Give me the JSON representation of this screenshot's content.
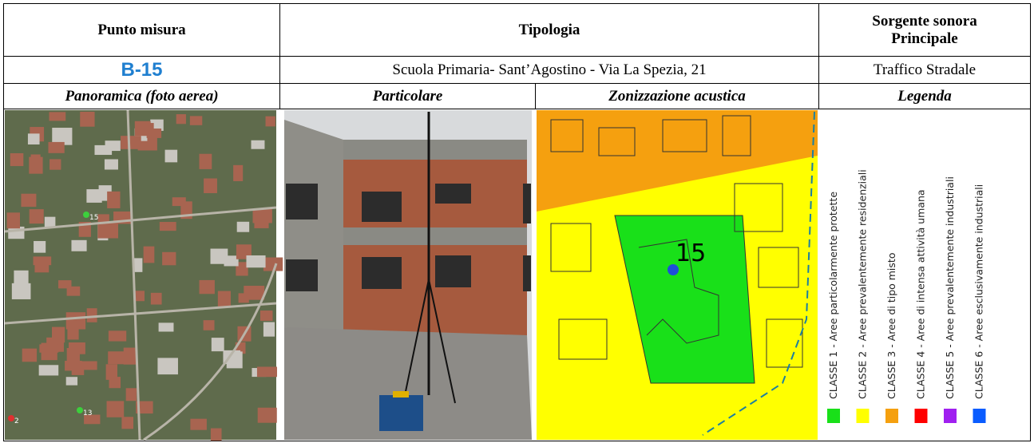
{
  "header": {
    "point": "Punto misura",
    "type": "Tipologia",
    "source": "Sorgente sonora Principale"
  },
  "info": {
    "point": "B-15",
    "type": "Scuola Primaria- Sant’Agostino - Via La Spezia, 21",
    "source": "Traffico Stradale"
  },
  "subheader": {
    "aerial": "Panoramica (foto aerea)",
    "detail": "Particolare",
    "zoning": "Zonizzazione acustica",
    "legend": "Legenda"
  },
  "aerial_markers": [
    "15",
    "13",
    "2"
  ],
  "map_label": "15",
  "legend": [
    {
      "label": "CLASSE 1 - Aree particolarmente protette",
      "color": "#19e019"
    },
    {
      "label": "CLASSE 2 - Aree prevalentemente residenziali",
      "color": "#ffff00"
    },
    {
      "label": "CLASSE 3 - Aree di tipo misto",
      "color": "#f5a00f"
    },
    {
      "label": "CLASSE 4 - Aree  di intensa attività umana",
      "color": "#ff0000"
    },
    {
      "label": "CLASSE 5 - Aree prevalentemente industriali",
      "color": "#a020f0"
    },
    {
      "label": "CLASSE 6 - Aree esclusivamente industriali",
      "color": "#0a5cff"
    }
  ]
}
